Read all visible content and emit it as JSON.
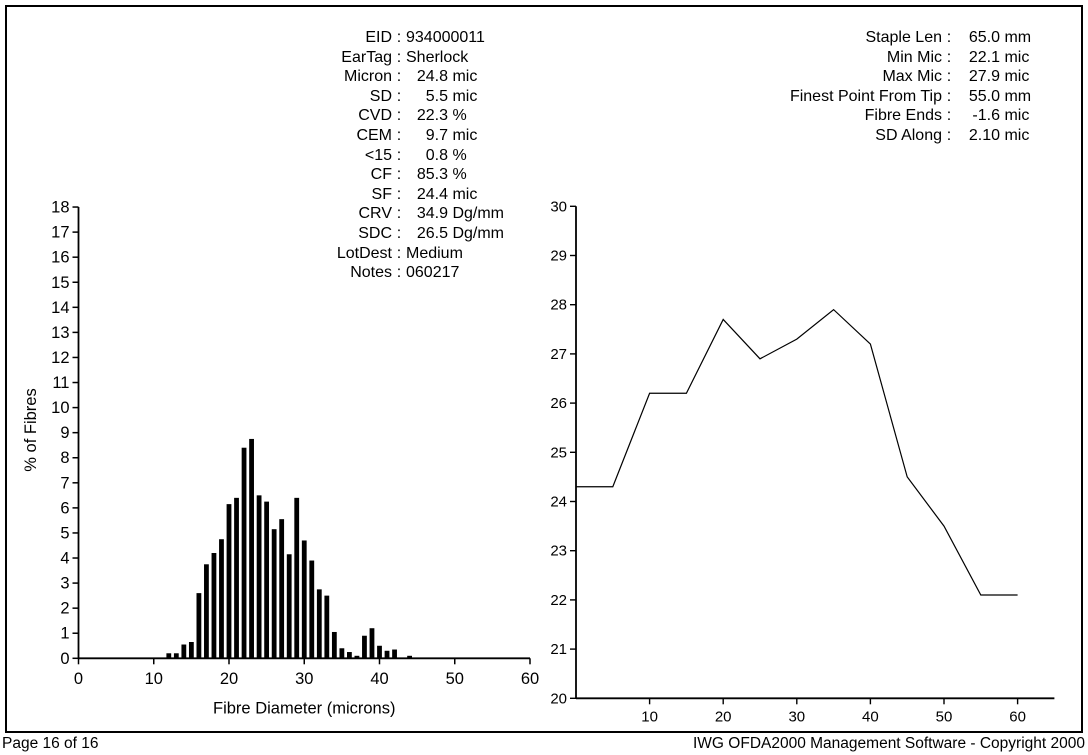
{
  "report": {
    "center_stats": [
      {
        "label": "EID",
        "text": "934000011"
      },
      {
        "label": "EarTag",
        "text": "Sherlock"
      },
      {
        "label": "Micron",
        "num": "24.8",
        "unit": "mic"
      },
      {
        "label": "SD",
        "num": "5.5",
        "unit": "mic"
      },
      {
        "label": "CVD",
        "num": "22.3",
        "unit": "%"
      },
      {
        "label": "CEM",
        "num": "9.7",
        "unit": "mic"
      },
      {
        "label": "<15",
        "num": "0.8",
        "unit": "%"
      },
      {
        "label": "CF",
        "num": "85.3",
        "unit": "%"
      },
      {
        "label": "SF",
        "num": "24.4",
        "unit": "mic"
      },
      {
        "label": "CRV",
        "num": "34.9",
        "unit": "Dg/mm"
      },
      {
        "label": "SDC",
        "num": "26.5",
        "unit": "Dg/mm"
      },
      {
        "label": "LotDest",
        "text": "Medium"
      },
      {
        "label": "Notes",
        "text": "060217"
      }
    ],
    "right_stats": [
      {
        "label": "Staple Len",
        "num": "65.0",
        "unit": "mm"
      },
      {
        "label": "Min Mic",
        "num": "22.1",
        "unit": "mic"
      },
      {
        "label": "Max Mic",
        "num": "27.9",
        "unit": "mic"
      },
      {
        "label": "Finest Point From Tip",
        "num": "55.0",
        "unit": "mm"
      },
      {
        "label": "Fibre Ends",
        "num": "-1.6",
        "unit": "mic"
      },
      {
        "label": "SD Along",
        "num": "2.10",
        "unit": "mic"
      }
    ],
    "footer": {
      "left": "Page 16 of 16",
      "right": "IWG OFDA2000 Management Software - Copyright 2000"
    }
  },
  "chart_data": [
    {
      "type": "bar",
      "title": "",
      "xlabel": "Fibre Diameter (microns)",
      "ylabel": "% of Fibres",
      "xlim": [
        0,
        60
      ],
      "ylim": [
        0,
        18
      ],
      "x_ticks": [
        0,
        10,
        20,
        30,
        40,
        50,
        60
      ],
      "y_ticks": [
        0,
        1,
        2,
        3,
        4,
        5,
        6,
        7,
        8,
        9,
        10,
        11,
        12,
        13,
        14,
        15,
        16,
        17,
        18
      ],
      "grid": false,
      "bar_color": "#000000",
      "categories": [
        12,
        13,
        14,
        15,
        16,
        17,
        18,
        19,
        20,
        21,
        22,
        23,
        24,
        25,
        26,
        27,
        28,
        29,
        30,
        31,
        32,
        33,
        34,
        35,
        36,
        37,
        38,
        39,
        40,
        41,
        42,
        43,
        44
      ],
      "values": [
        0.2,
        0.2,
        0.55,
        0.65,
        2.6,
        3.75,
        4.2,
        4.75,
        6.15,
        6.4,
        8.4,
        8.75,
        6.5,
        6.25,
        5.15,
        5.55,
        4.15,
        6.4,
        4.7,
        3.9,
        2.75,
        2.5,
        1.05,
        0.4,
        0.25,
        0.1,
        0.9,
        1.2,
        0.5,
        0.3,
        0.35,
        0,
        0.1
      ]
    },
    {
      "type": "line",
      "title": "",
      "xlabel": "",
      "ylabel": "",
      "xlim": [
        0,
        65
      ],
      "ylim": [
        20,
        30
      ],
      "x_ticks": [
        10,
        20,
        30,
        40,
        50,
        60
      ],
      "y_ticks": [
        20,
        21,
        22,
        23,
        24,
        25,
        26,
        27,
        28,
        29,
        30
      ],
      "grid": false,
      "line_color": "#000000",
      "x": [
        0,
        5,
        10,
        15,
        20,
        25,
        30,
        35,
        40,
        45,
        50,
        55,
        60
      ],
      "y": [
        24.3,
        24.3,
        26.2,
        26.2,
        27.7,
        26.9,
        27.3,
        27.9,
        27.2,
        24.5,
        23.5,
        22.1,
        22.1
      ]
    }
  ]
}
